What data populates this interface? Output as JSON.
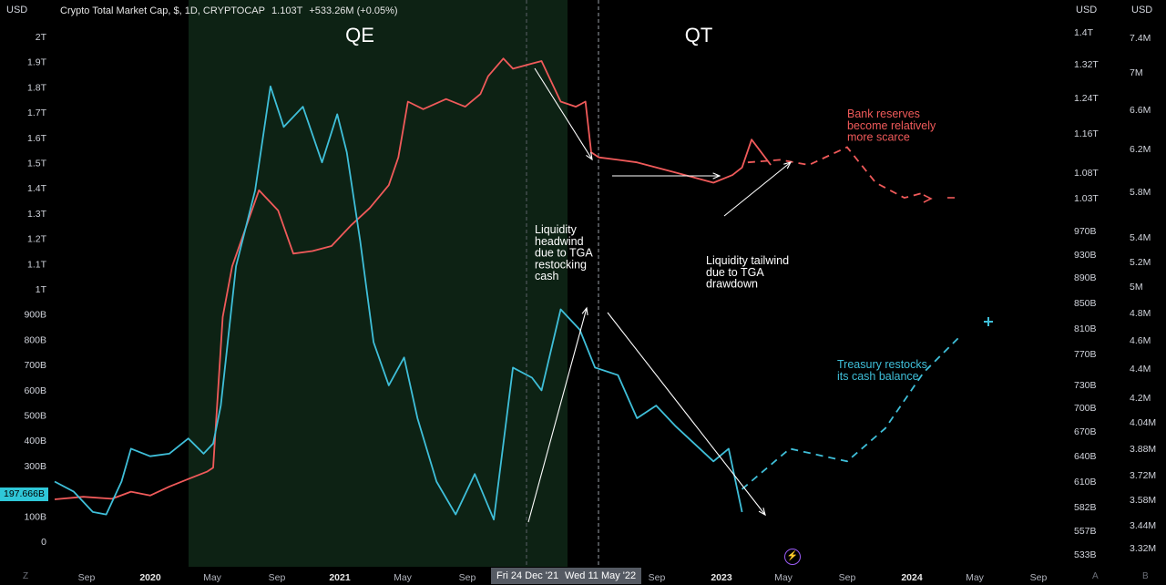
{
  "header": {
    "left_unit": "USD",
    "right_unit_1": "USD",
    "right_unit_2": "USD",
    "symbol": "Crypto Total Market Cap, $, 1D, CRYPTOCAP",
    "last_value": "1.103T",
    "change": "+533.26M (+0.05%)"
  },
  "price_tag": "197.666B",
  "cursor_labels": [
    "Fri 24 Dec '21",
    "Wed 11 May '22"
  ],
  "bottom_icons": {
    "left": "Z",
    "auto": "A",
    "bolt": "⚡",
    "log": "B"
  },
  "colors": {
    "background": "#000000",
    "qe_band": "#0d2214",
    "market_cap_line": "#f05a5a",
    "tga_line": "#3fbfd9",
    "arrows": "#ffffff",
    "cursor_label_bg": "#555a63",
    "price_tag_bg": "#2fc7d8"
  },
  "chart_data": {
    "type": "line",
    "title": "Crypto Total Market Cap, $, 1D, CRYPTOCAP",
    "x_ticks": [
      "Sep",
      "2020",
      "May",
      "Sep",
      "2021",
      "May",
      "Sep",
      "Fri 24 Dec '21",
      "Wed 11 May '22",
      "Sep",
      "2023",
      "May",
      "Sep",
      "2024",
      "May",
      "Sep"
    ],
    "y_left_ticks": [
      "2T",
      "1.9T",
      "1.8T",
      "1.7T",
      "1.6T",
      "1.5T",
      "1.4T",
      "1.3T",
      "1.2T",
      "1.1T",
      "1T",
      "900B",
      "800B",
      "700B",
      "600B",
      "500B",
      "400B",
      "300B",
      "200B",
      "100B",
      "0"
    ],
    "y_right1_ticks": [
      "1.4T",
      "1.32T",
      "1.24T",
      "1.16T",
      "1.08T",
      "1.03T",
      "970B",
      "930B",
      "890B",
      "850B",
      "810B",
      "770B",
      "730B",
      "700B",
      "670B",
      "640B",
      "610B",
      "582B",
      "557B",
      "533B"
    ],
    "y_right2_ticks": [
      "7.4M",
      "7M",
      "6.6M",
      "6.2M",
      "5.8M",
      "5.4M",
      "5.2M",
      "5M",
      "4.8M",
      "4.6M",
      "4.4M",
      "4.2M",
      "4.04M",
      "3.88M",
      "3.72M",
      "3.58M",
      "3.44M",
      "3.32M"
    ],
    "regions": [
      {
        "label": "QE",
        "from": "2020-03",
        "to": "2022-03"
      },
      {
        "label": "QT",
        "from": "2022-03",
        "to": "2024-09"
      }
    ],
    "annotations": [
      {
        "lines": [
          "Bank reserves",
          "become relatively",
          "more scarce"
        ],
        "color": "#f05a5a"
      },
      {
        "lines": [
          "Liquidity",
          "headwind",
          "due to TGA",
          "restocking",
          "cash"
        ],
        "color": "#ffffff"
      },
      {
        "lines": [
          "Liquidity tailwind",
          "due to TGA",
          "drawdown"
        ],
        "color": "#ffffff"
      },
      {
        "lines": [
          "Treasury restocks",
          "its cash balance"
        ],
        "color": "#3fbfd9"
      }
    ],
    "series": [
      {
        "color": "#f05a5a",
        "points": [
          [
            2019.55,
            1.8
          ],
          [
            2019.7,
            1.9
          ],
          [
            2019.85,
            1.82
          ],
          [
            2019.95,
            2.1
          ],
          [
            2020.05,
            1.95
          ],
          [
            2020.15,
            2.3
          ],
          [
            2020.25,
            2.6
          ],
          [
            2020.35,
            2.9
          ],
          [
            2020.38,
            3.05
          ],
          [
            2020.43,
            9.0
          ],
          [
            2020.48,
            11.0
          ],
          [
            2020.55,
            12.5
          ],
          [
            2020.62,
            14.0
          ],
          [
            2020.72,
            13.2
          ],
          [
            2020.8,
            11.5
          ],
          [
            2020.9,
            11.6
          ],
          [
            2021.0,
            11.8
          ],
          [
            2021.1,
            12.6
          ],
          [
            2021.2,
            13.3
          ],
          [
            2021.3,
            14.2
          ],
          [
            2021.35,
            15.3
          ],
          [
            2021.4,
            17.5
          ],
          [
            2021.48,
            17.2
          ],
          [
            2021.6,
            17.6
          ],
          [
            2021.7,
            17.3
          ],
          [
            2021.78,
            17.8
          ],
          [
            2021.82,
            18.5
          ],
          [
            2021.9,
            19.2
          ],
          [
            2021.95,
            18.8
          ],
          [
            2022.05,
            19.0
          ],
          [
            2022.1,
            19.1
          ],
          [
            2022.2,
            17.5
          ],
          [
            2022.28,
            17.3
          ],
          [
            2022.33,
            17.5
          ],
          [
            2022.36,
            15.5
          ],
          [
            2022.4,
            15.3
          ],
          [
            2022.5,
            15.2
          ],
          [
            2022.6,
            15.1
          ],
          [
            2022.7,
            14.9
          ],
          [
            2022.8,
            14.7
          ],
          [
            2022.9,
            14.5
          ],
          [
            2023.0,
            14.3
          ],
          [
            2023.1,
            14.6
          ],
          [
            2023.15,
            14.9
          ],
          [
            2023.2,
            16.0
          ],
          [
            2023.25,
            15.5
          ],
          [
            2023.3,
            15.0
          ]
        ]
      },
      {
        "color": "#3fbfd9",
        "points": [
          [
            2019.55,
            2.5
          ],
          [
            2019.65,
            2.1
          ],
          [
            2019.75,
            1.3
          ],
          [
            2019.82,
            1.2
          ],
          [
            2019.9,
            2.5
          ],
          [
            2019.95,
            3.8
          ],
          [
            2020.05,
            3.5
          ],
          [
            2020.15,
            3.6
          ],
          [
            2020.25,
            4.2
          ],
          [
            2020.33,
            3.6
          ],
          [
            2020.38,
            4.0
          ],
          [
            2020.42,
            5.5
          ],
          [
            2020.5,
            11.0
          ],
          [
            2020.6,
            14.0
          ],
          [
            2020.68,
            18.1
          ],
          [
            2020.75,
            16.5
          ],
          [
            2020.85,
            17.3
          ],
          [
            2020.95,
            15.1
          ],
          [
            2021.03,
            17.0
          ],
          [
            2021.08,
            15.5
          ],
          [
            2021.15,
            12.0
          ],
          [
            2021.22,
            8.0
          ],
          [
            2021.3,
            6.3
          ],
          [
            2021.38,
            7.4
          ],
          [
            2021.45,
            5.0
          ],
          [
            2021.55,
            2.5
          ],
          [
            2021.65,
            1.2
          ],
          [
            2021.75,
            2.8
          ],
          [
            2021.85,
            1.0
          ],
          [
            2021.95,
            7.0
          ],
          [
            2022.05,
            6.6
          ],
          [
            2022.1,
            6.1
          ],
          [
            2022.2,
            9.3
          ],
          [
            2022.3,
            8.5
          ],
          [
            2022.38,
            7.0
          ],
          [
            2022.5,
            6.7
          ],
          [
            2022.6,
            5.0
          ],
          [
            2022.7,
            5.5
          ],
          [
            2022.8,
            4.7
          ],
          [
            2022.9,
            4.0
          ],
          [
            2023.0,
            3.3
          ],
          [
            2023.08,
            3.8
          ],
          [
            2023.15,
            1.3
          ]
        ]
      }
    ],
    "projections": [
      {
        "color": "#f05a5a",
        "style": "dashed",
        "points": [
          [
            2023.18,
            15.1
          ],
          [
            2023.35,
            15.2
          ],
          [
            2023.5,
            15.0
          ],
          [
            2023.7,
            15.7
          ],
          [
            2023.85,
            14.3
          ],
          [
            2024.0,
            13.7
          ],
          [
            2024.1,
            13.9
          ]
        ]
      },
      {
        "color": "#3fbfd9",
        "style": "dashed",
        "points": [
          [
            2023.15,
            2.2
          ],
          [
            2023.4,
            3.8
          ],
          [
            2023.7,
            3.3
          ],
          [
            2023.9,
            4.6
          ],
          [
            2024.1,
            6.8
          ],
          [
            2024.3,
            8.3
          ]
        ]
      }
    ]
  }
}
